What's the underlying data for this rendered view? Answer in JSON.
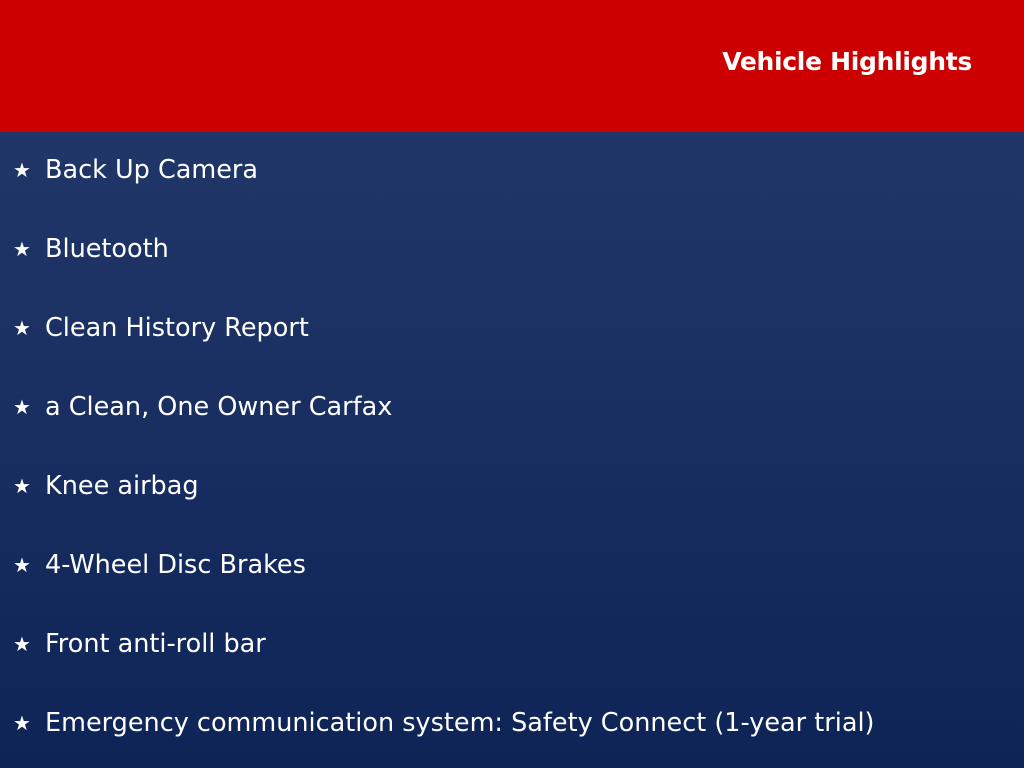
{
  "header": {
    "title": "Vehicle Highlights",
    "background_color": "#cc0000"
  },
  "highlights": {
    "bullet_icon": "star-icon",
    "items": [
      "Back Up Camera",
      "Bluetooth",
      "Clean History Report",
      "a Clean, One Owner Carfax",
      "Knee airbag",
      "4-Wheel Disc Brakes",
      "Front anti-roll bar",
      "Emergency communication system: Safety Connect (1-year trial)"
    ]
  }
}
